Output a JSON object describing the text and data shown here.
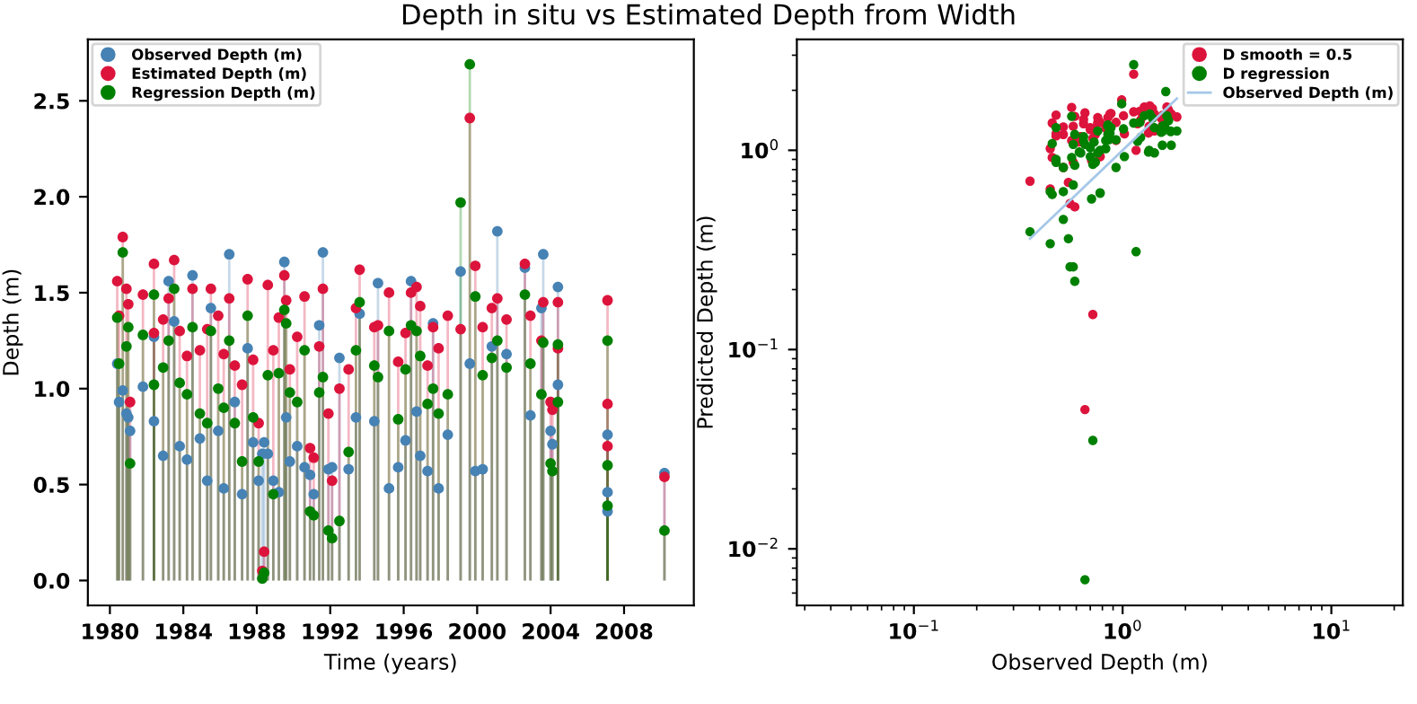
{
  "chart_data": [
    {
      "type": "lollipop",
      "title": "Depth in situ vs Estimated Depth from Width",
      "xlabel": "Time (years)",
      "ylabel": "Depth (m)",
      "x": [
        1980.4,
        1980.5,
        1980.7,
        1980.9,
        1981.0,
        1981.1,
        1981.8,
        1982.4,
        1982.4,
        1982.9,
        1983.2,
        1983.5,
        1983.8,
        1984.2,
        1984.5,
        1984.9,
        1985.3,
        1985.5,
        1985.9,
        1986.2,
        1986.5,
        1986.8,
        1987.2,
        1987.5,
        1987.8,
        1988.1,
        1988.3,
        1988.4,
        1988.6,
        1988.9,
        1989.2,
        1989.5,
        1989.6,
        1989.8,
        1990.2,
        1990.6,
        1990.9,
        1991.1,
        1991.4,
        1991.6,
        1991.9,
        1992.1,
        1992.5,
        1993.0,
        1993.4,
        1993.6,
        1994.4,
        1994.6,
        1995.2,
        1995.7,
        1996.1,
        1996.4,
        1996.7,
        1996.9,
        1997.3,
        1997.6,
        1997.9,
        1998.4,
        1999.1,
        1999.6,
        1999.9,
        2000.3,
        2000.8,
        2001.1,
        2001.6,
        2002.6,
        2002.9,
        2003.5,
        2003.6,
        2004.0,
        2004.1,
        2004.4,
        2004.4,
        2007.1,
        2007.1,
        2007.1,
        2010.2
      ],
      "series": [
        {
          "name": "Observed Depth (m)",
          "color": "#4682b4",
          "values": [
            1.13,
            0.93,
            0.99,
            0.87,
            0.85,
            0.78,
            1.01,
            1.27,
            0.83,
            0.65,
            1.56,
            1.35,
            0.7,
            0.63,
            1.59,
            0.74,
            0.52,
            1.42,
            0.78,
            0.48,
            1.7,
            0.93,
            0.45,
            1.21,
            0.72,
            0.52,
            0.66,
            0.72,
            0.66,
            0.52,
            0.46,
            1.66,
            0.85,
            0.62,
            0.7,
            0.59,
            0.55,
            0.45,
            1.33,
            1.71,
            0.58,
            0.59,
            1.16,
            0.58,
            0.85,
            1.39,
            0.83,
            1.55,
            0.48,
            0.59,
            0.73,
            1.56,
            0.88,
            0.65,
            0.57,
            1.34,
            0.48,
            0.76,
            1.61,
            1.13,
            0.57,
            0.58,
            1.22,
            1.82,
            1.18,
            1.63,
            0.86,
            1.42,
            1.7,
            0.78,
            0.71,
            1.53,
            1.02,
            0.76,
            0.46,
            0.36,
            0.56
          ]
        },
        {
          "name": "Estimated Depth (m)",
          "color": "#dc143c",
          "values": [
            1.56,
            1.38,
            1.79,
            1.52,
            1.44,
            0.93,
            1.49,
            1.65,
            1.29,
            1.36,
            1.47,
            1.67,
            1.3,
            1.17,
            1.52,
            1.2,
            1.31,
            1.52,
            1.38,
            1.18,
            1.47,
            1.12,
            1.02,
            1.57,
            1.15,
            0.82,
            0.05,
            0.15,
            1.54,
            1.2,
            1.37,
            1.59,
            1.46,
            1.1,
            1.27,
            1.48,
            0.69,
            0.64,
            1.22,
            1.52,
            0.87,
            0.52,
            1.0,
            1.1,
            1.42,
            1.62,
            1.32,
            1.33,
            1.5,
            1.14,
            1.29,
            1.5,
            1.53,
            1.43,
            1.12,
            1.32,
            1.21,
            1.38,
            1.31,
            2.41,
            1.64,
            1.32,
            1.42,
            1.47,
            1.36,
            1.65,
            1.38,
            1.25,
            1.45,
            0.93,
            0.89,
            1.45,
            1.21,
            1.46,
            0.92,
            0.7,
            0.54
          ]
        },
        {
          "name": "Regression Depth (m)",
          "color": "#008000",
          "values": [
            1.37,
            1.13,
            1.71,
            1.22,
            1.32,
            0.61,
            1.28,
            1.49,
            1.02,
            1.11,
            1.25,
            1.52,
            1.03,
            0.97,
            1.32,
            0.87,
            0.82,
            1.3,
            1.0,
            0.9,
            1.25,
            0.82,
            0.62,
            1.38,
            0.85,
            0.62,
            0.01,
            0.04,
            1.07,
            0.45,
            1.08,
            1.41,
            1.34,
            0.98,
            0.93,
            1.2,
            0.36,
            0.34,
            0.98,
            1.06,
            0.26,
            0.22,
            0.31,
            0.67,
            1.2,
            1.45,
            1.12,
            1.06,
            1.3,
            0.84,
            1.1,
            1.33,
            1.3,
            1.17,
            0.92,
            1.0,
            0.87,
            0.97,
            1.97,
            2.69,
            1.48,
            1.07,
            1.16,
            1.25,
            1.11,
            1.49,
            1.13,
            0.97,
            1.24,
            0.61,
            0.57,
            1.23,
            0.93,
            1.25,
            0.6,
            0.39,
            0.26
          ]
        }
      ],
      "xlim": [
        1978.8,
        2011.8
      ],
      "ylim": [
        -0.13,
        2.82
      ],
      "xticks": [
        1980,
        1984,
        1988,
        1992,
        1996,
        2000,
        2004,
        2008
      ],
      "yticks": [
        {
          "value": 0,
          "label": "0.0"
        },
        0.5,
        {
          "value": 1,
          "label": "1.0"
        },
        1.5,
        {
          "value": 2,
          "label": "2.0"
        },
        2.5
      ],
      "legend": "top left",
      "marker": "circle"
    },
    {
      "type": "scatter",
      "xlabel": "Observed Depth (m)",
      "ylabel": "Predicted Depth (m)",
      "log": "xy",
      "series": [
        {
          "name": "D smooth = 0.5",
          "color": "#dc143c",
          "type": "scatter",
          "marker": "circle",
          "x": [
            1.13,
            0.93,
            0.99,
            0.87,
            0.78,
            1.01,
            1.27,
            0.83,
            0.65,
            1.35,
            0.7,
            0.63,
            0.74,
            0.52,
            1.42,
            0.78,
            0.48,
            0.93,
            0.45,
            1.21,
            0.72,
            0.52,
            0.66,
            0.72,
            0.66,
            0.52,
            0.46,
            1.66,
            0.85,
            0.62,
            0.7,
            0.59,
            0.55,
            0.45,
            1.33,
            1.71,
            0.58,
            0.59,
            1.16,
            1.39,
            1.55,
            0.48,
            0.73,
            1.56,
            0.88,
            0.65,
            0.57,
            1.34,
            0.48,
            0.76,
            1.13,
            0.57,
            0.58,
            1.22,
            1.82,
            1.18,
            1.63,
            1.42,
            0.78,
            0.71,
            1.53,
            1.02,
            0.76,
            0.46,
            0.36,
            0.56
          ],
          "values": [
            1.56,
            1.38,
            1.79,
            1.52,
            0.93,
            1.49,
            1.65,
            1.29,
            1.36,
            1.67,
            1.3,
            1.17,
            1.2,
            1.31,
            1.52,
            1.38,
            1.18,
            1.12,
            1.02,
            1.57,
            1.15,
            0.82,
            0.05,
            0.15,
            1.54,
            1.2,
            1.37,
            1.59,
            1.46,
            1.1,
            1.27,
            1.48,
            0.69,
            0.64,
            1.22,
            1.52,
            0.87,
            0.52,
            1.0,
            1.62,
            1.33,
            1.5,
            1.29,
            1.5,
            1.53,
            1.43,
            1.12,
            1.32,
            1.21,
            1.38,
            2.41,
            1.64,
            1.32,
            1.42,
            1.47,
            1.36,
            1.65,
            1.25,
            0.93,
            0.89,
            1.45,
            1.21,
            1.46,
            0.92,
            0.7,
            0.54
          ]
        },
        {
          "name": "D regression",
          "color": "#008000",
          "type": "scatter",
          "marker": "circle",
          "x": [
            1.13,
            0.93,
            0.99,
            0.87,
            0.85,
            0.78,
            1.01,
            1.27,
            0.83,
            0.65,
            1.56,
            1.35,
            0.7,
            0.63,
            1.59,
            0.74,
            0.52,
            1.42,
            0.78,
            0.48,
            1.7,
            0.93,
            0.45,
            1.21,
            0.72,
            0.52,
            0.66,
            0.72,
            0.66,
            0.52,
            0.46,
            1.66,
            0.85,
            0.62,
            0.7,
            0.59,
            0.55,
            0.45,
            1.33,
            1.71,
            0.58,
            0.59,
            1.16,
            0.58,
            0.85,
            1.39,
            0.83,
            1.55,
            0.48,
            0.59,
            0.73,
            1.56,
            0.88,
            0.65,
            0.57,
            1.34,
            0.48,
            0.76,
            1.61,
            1.13,
            0.57,
            0.58,
            1.22,
            1.82,
            1.18,
            1.63,
            0.86,
            1.42,
            1.7,
            0.78,
            0.71,
            1.53,
            1.02,
            0.76,
            0.46,
            0.36,
            0.56
          ],
          "values": [
            1.37,
            1.13,
            1.71,
            1.22,
            1.32,
            0.61,
            1.28,
            1.49,
            1.02,
            1.11,
            1.25,
            1.52,
            1.03,
            0.97,
            1.32,
            0.87,
            0.82,
            1.3,
            1.0,
            0.9,
            1.25,
            0.82,
            0.62,
            1.38,
            0.85,
            0.62,
            0.007,
            0.035,
            1.07,
            0.45,
            1.08,
            1.41,
            1.34,
            0.98,
            0.93,
            1.2,
            0.36,
            0.34,
            0.98,
            1.06,
            0.26,
            0.22,
            0.31,
            0.67,
            1.2,
            1.45,
            1.12,
            1.06,
            1.3,
            0.84,
            1.1,
            1.33,
            1.3,
            1.17,
            0.92,
            1.0,
            0.87,
            0.97,
            1.97,
            2.69,
            1.48,
            1.07,
            1.16,
            1.25,
            1.11,
            1.49,
            1.13,
            0.97,
            1.24,
            0.61,
            0.57,
            1.23,
            0.93,
            1.25,
            0.6,
            0.39,
            0.26
          ]
        },
        {
          "name": "Observed Depth (m)",
          "color": "#a6c8e8",
          "type": "line",
          "x": [
            0.36,
            1.82
          ],
          "values": [
            0.36,
            1.82
          ]
        }
      ],
      "xlim": [
        0.0275,
        22
      ],
      "ylim": [
        0.0052,
        3.6
      ],
      "xticks": [
        {
          "value": 0.1,
          "label": "10$^{−1}$"
        },
        {
          "value": 1,
          "label": "10$^{0}$"
        },
        {
          "value": 10,
          "label": "10$^{1}$"
        }
      ],
      "yticks": [
        {
          "value": 0.01,
          "label": "10$^{−2}$"
        },
        {
          "value": 0.1,
          "label": "10$^{−1}$"
        },
        {
          "value": 1,
          "label": "10$^{0}$"
        }
      ],
      "legend": "top right"
    }
  ]
}
